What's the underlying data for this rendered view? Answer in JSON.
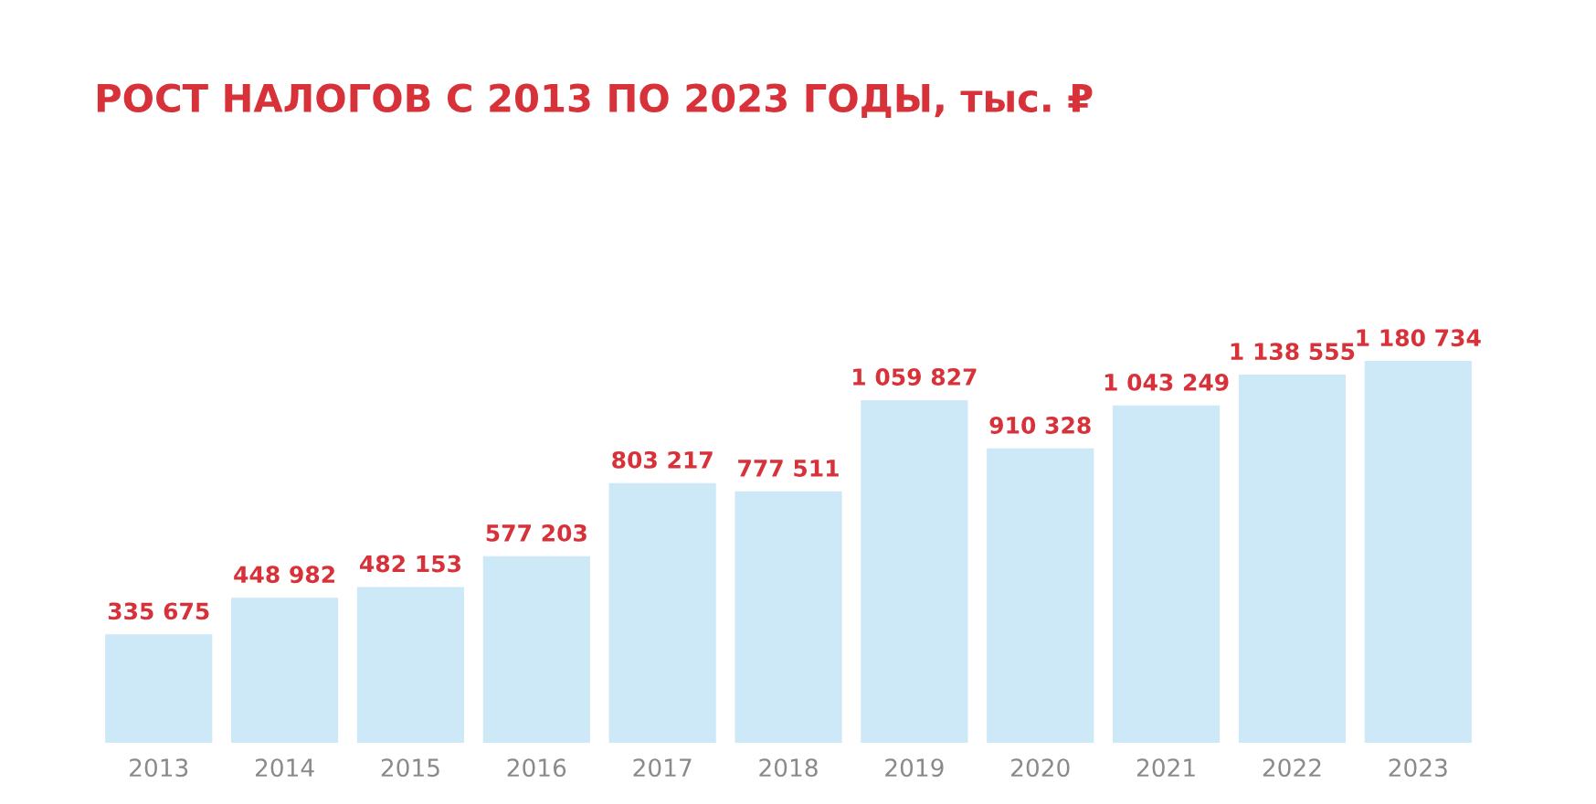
{
  "chart_data": {
    "type": "bar",
    "title": "РОСТ НАЛОГОВ С 2013 ПО 2023 ГОДЫ, тыс. ₽",
    "categories": [
      "2013",
      "2014",
      "2015",
      "2016",
      "2017",
      "2018",
      "2019",
      "2020",
      "2021",
      "2022",
      "2023"
    ],
    "values": [
      335675,
      448982,
      482153,
      577203,
      803217,
      777511,
      1059827,
      910328,
      1043249,
      1138555,
      1180734
    ],
    "value_labels": [
      "335 675",
      "448 982",
      "482 153",
      "577 203",
      "803 217",
      "777 511",
      "1 059 827",
      "910 328",
      "1 043 249",
      "1 138 555",
      "1 180 734"
    ],
    "color": "#cde8f6",
    "grid": false,
    "legend": false
  }
}
